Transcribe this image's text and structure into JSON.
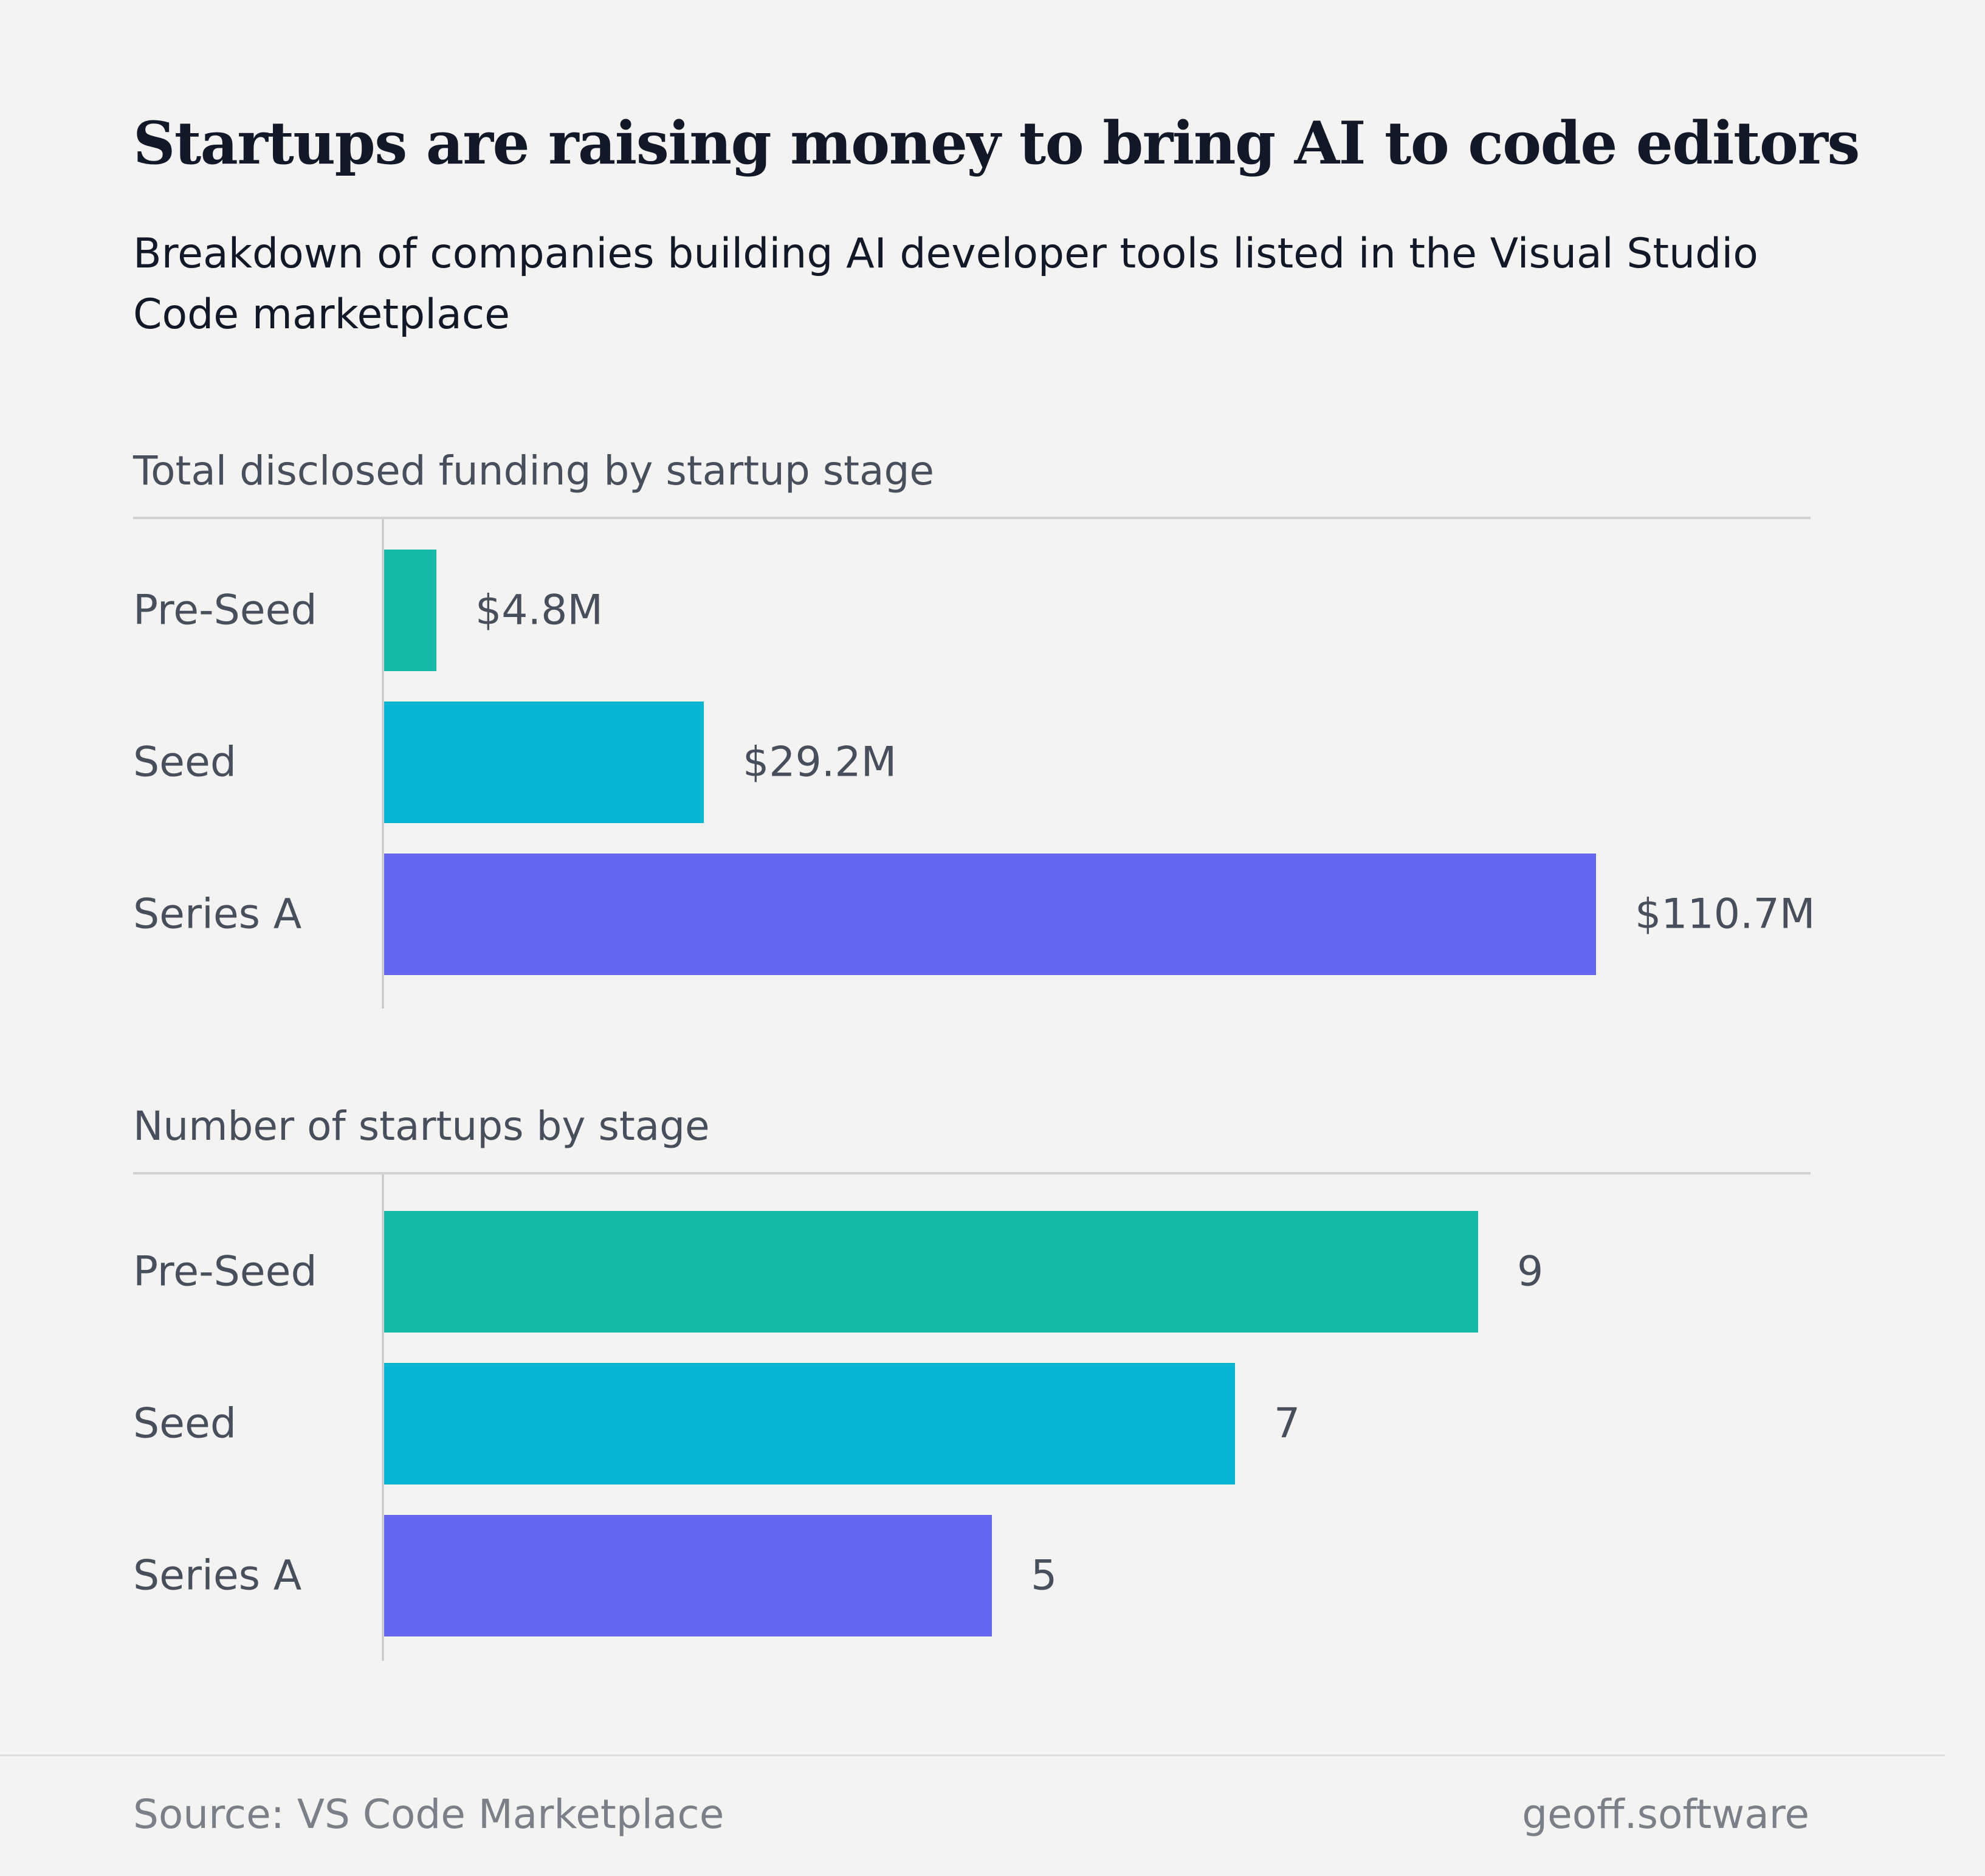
{
  "title": "Startups are raising money to bring AI to code editors",
  "subtitle": "Breakdown of companies building AI developer tools listed in the Visual Studio Code marketplace",
  "footer": {
    "source": "Source: VS Code Marketplace",
    "brand": "geoff.software"
  },
  "colors": {
    "pre_seed": "#16b8a6",
    "seed": "#08b6d4",
    "series_a": "#6467f0",
    "label_text": "#474f5c",
    "axis": "#c4c4c2"
  },
  "chart_data": [
    {
      "type": "bar",
      "orientation": "horizontal",
      "title": "Total disclosed funding by startup stage",
      "categories": [
        "Pre-Seed",
        "Seed",
        "Series A"
      ],
      "values": [
        4.8,
        29.2,
        110.7
      ],
      "value_labels": [
        "$4.8M",
        "$29.2M",
        "$110.7M"
      ],
      "unit": "$M",
      "xlim": [
        0,
        110.7
      ],
      "grid": false,
      "legend": "none"
    },
    {
      "type": "bar",
      "orientation": "horizontal",
      "title": "Number of startups by stage",
      "categories": [
        "Pre-Seed",
        "Seed",
        "Series A"
      ],
      "values": [
        9,
        7,
        5
      ],
      "value_labels": [
        "9",
        "7",
        "5"
      ],
      "xlim": [
        0,
        9
      ],
      "grid": false,
      "legend": "none"
    }
  ]
}
